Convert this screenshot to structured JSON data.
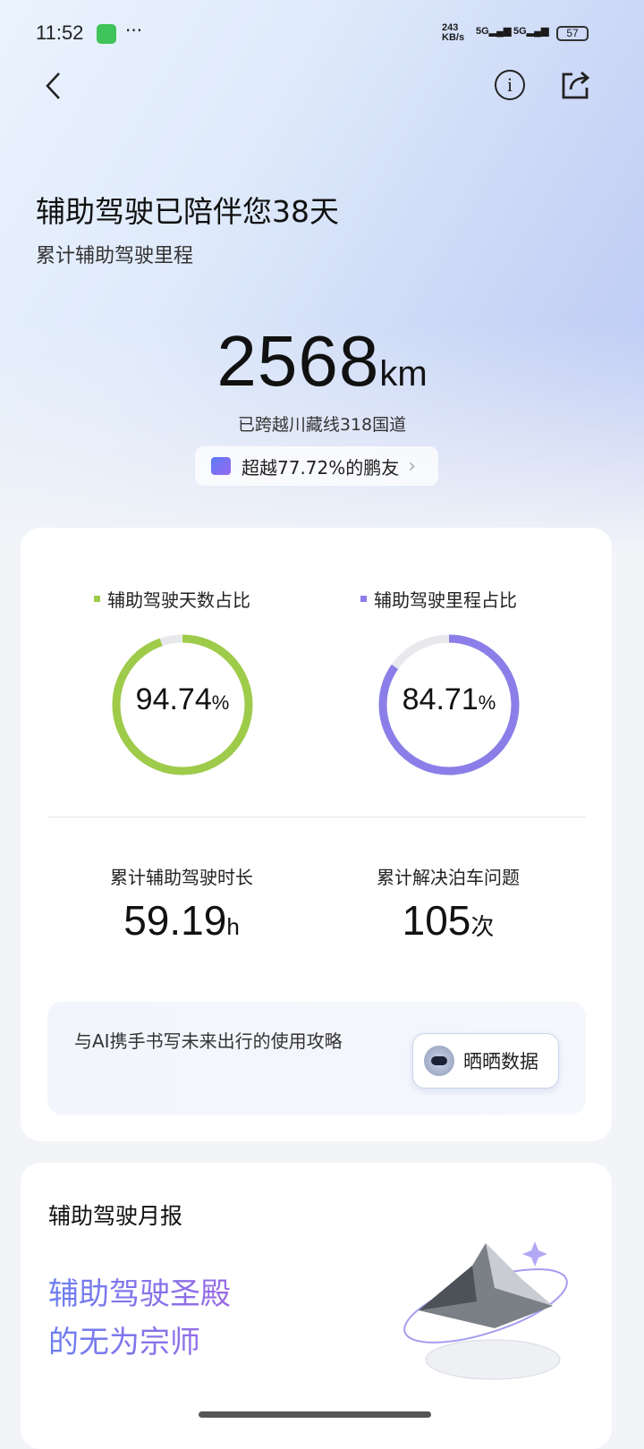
{
  "status_bar": {
    "time": "11:52",
    "more": "···",
    "net_speed_top": "243",
    "net_speed_bottom": "KB/s",
    "sig1": "5G",
    "sig2": "5G",
    "battery": "57"
  },
  "header": {
    "back_icon": "chevron-left-icon",
    "info_icon": "info-icon",
    "share_icon": "share-icon"
  },
  "hero": {
    "title": "辅助驾驶已陪伴您38天",
    "subtitle": "累计辅助驾驶里程",
    "mileage": "2568",
    "unit": "km",
    "crossed": "已跨越川藏线318国道",
    "rank": "超越77.72%的鹏友"
  },
  "ratios": [
    {
      "label": "辅助驾驶天数占比",
      "value": "94.74",
      "unit": "%",
      "percent": 94.74,
      "color": "#9fcb4a"
    },
    {
      "label": "辅助驾驶里程占比",
      "value": "84.71",
      "unit": "%",
      "percent": 84.71,
      "color": "#8c7ee8"
    }
  ],
  "stats": [
    {
      "label": "累计辅助驾驶时长",
      "value": "59.19",
      "unit": "h"
    },
    {
      "label": "累计解决泊车问题",
      "value": "105",
      "unit": "次"
    }
  ],
  "banner": {
    "text": "与AI携手书写未来出行的使用攻略",
    "button": "晒晒数据"
  },
  "monthly": {
    "title": "辅助驾驶月报",
    "headline1": "辅助驾驶圣殿",
    "headline2": "的无为宗师"
  }
}
